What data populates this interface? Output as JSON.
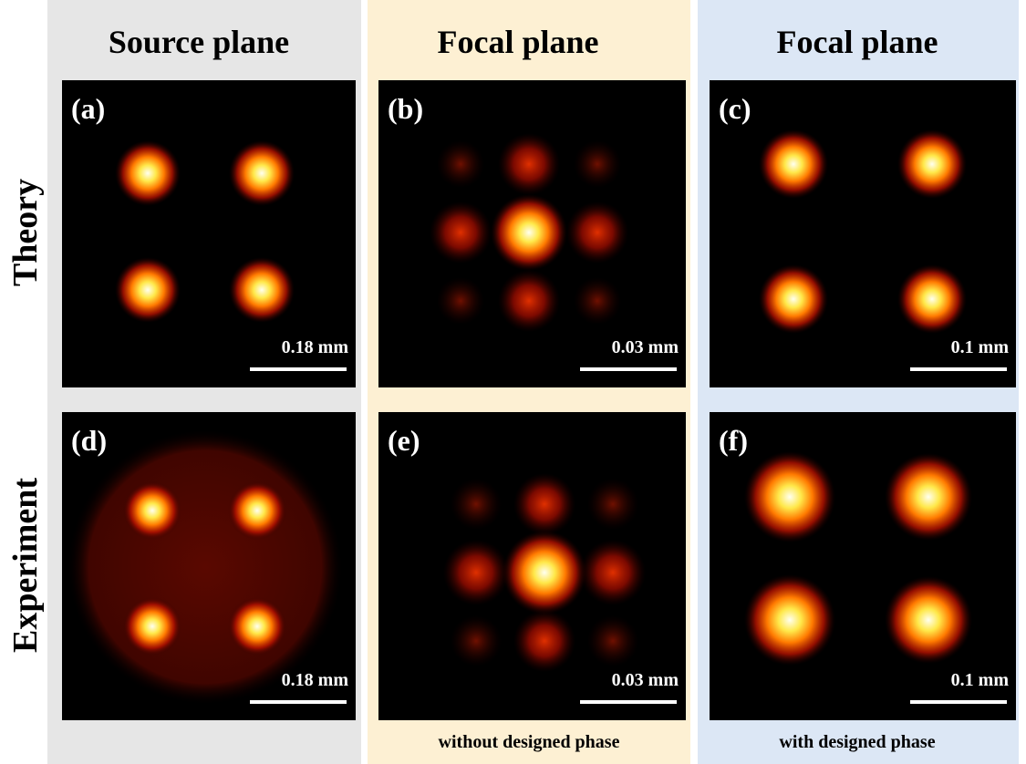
{
  "columns": [
    {
      "title": "Source plane"
    },
    {
      "title": "Focal plane",
      "caption": "without designed phase"
    },
    {
      "title": "Focal plane",
      "caption": "with designed phase"
    }
  ],
  "rows": [
    {
      "label": "Theory"
    },
    {
      "label": "Experiment"
    }
  ],
  "panels": [
    {
      "label": "(a)",
      "scale": "0.18 mm"
    },
    {
      "label": "(b)",
      "scale": "0.03 mm"
    },
    {
      "label": "(c)",
      "scale": "0.1 mm"
    },
    {
      "label": "(d)",
      "scale": "0.18 mm"
    },
    {
      "label": "(e)",
      "scale": "0.03 mm"
    },
    {
      "label": "(f)",
      "scale": "0.1 mm"
    }
  ]
}
